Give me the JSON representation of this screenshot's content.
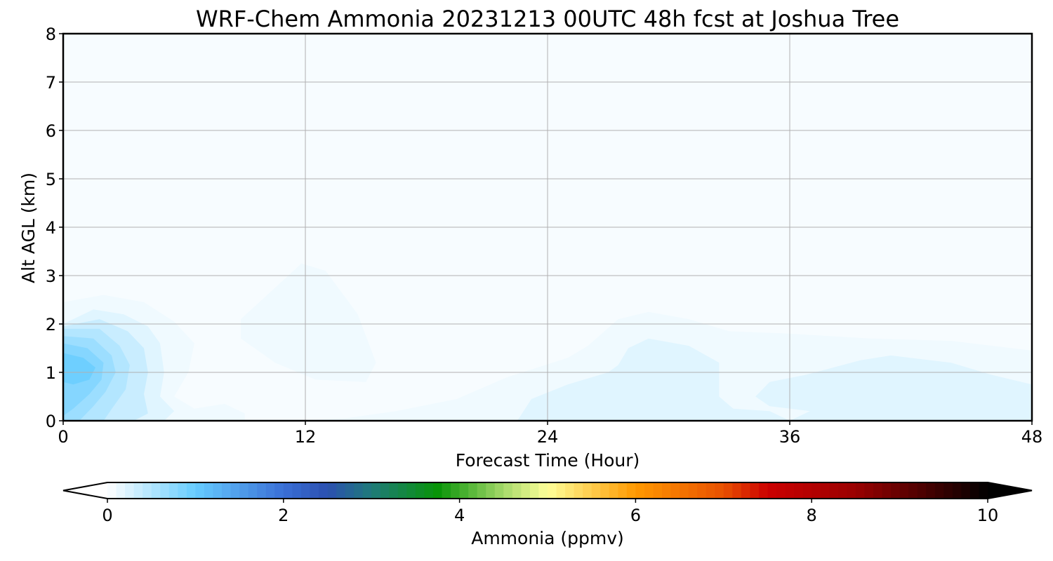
{
  "chart_data": {
    "type": "heatmap",
    "title": "WRF-Chem Ammonia  20231213 00UTC 48h fcst at Joshua Tree",
    "xlabel": "Forecast Time (Hour)",
    "ylabel": "Alt AGL (km)",
    "xlim": [
      0,
      48
    ],
    "ylim": [
      0,
      8
    ],
    "xticks": [
      "0",
      "12",
      "24",
      "36",
      "48"
    ],
    "yticks": [
      "0",
      "1",
      "2",
      "3",
      "4",
      "5",
      "6",
      "7",
      "8"
    ],
    "grid": true,
    "colorbar": {
      "label": "Ammonia  (ppmv)",
      "range": [
        0,
        10
      ],
      "ticks": [
        "0",
        "2",
        "4",
        "6",
        "8",
        "10"
      ],
      "extend": "both",
      "levels": 100,
      "stops": [
        {
          "value": 0,
          "color": "#ffffff"
        },
        {
          "value": 1,
          "color": "#66ccff"
        },
        {
          "value": 2,
          "color": "#3a6fd6"
        },
        {
          "value": 2.5,
          "color": "#2b50b0"
        },
        {
          "value": 3,
          "color": "#1f7a7a"
        },
        {
          "value": 3.75,
          "color": "#089408"
        },
        {
          "value": 4.5,
          "color": "#a6d96a"
        },
        {
          "value": 5,
          "color": "#ffff99"
        },
        {
          "value": 6,
          "color": "#ff9900"
        },
        {
          "value": 7,
          "color": "#e85000"
        },
        {
          "value": 7.5,
          "color": "#cc0000"
        },
        {
          "value": 8.5,
          "color": "#990000"
        },
        {
          "value": 10,
          "color": "#000000"
        }
      ]
    },
    "background_value": 0.05,
    "regions": [
      {
        "level": 0.1,
        "points": [
          [
            0,
            2.45
          ],
          [
            2,
            2.6
          ],
          [
            4,
            2.45
          ],
          [
            5.5,
            2.05
          ],
          [
            6.5,
            1.6
          ],
          [
            6.2,
            1.0
          ],
          [
            5.5,
            0.5
          ],
          [
            6.5,
            0.25
          ],
          [
            8,
            0.35
          ],
          [
            9,
            0.15
          ],
          [
            9,
            0
          ],
          [
            0,
            0
          ]
        ]
      },
      {
        "level": 0.1,
        "points": [
          [
            8.8,
            2.1
          ],
          [
            10.5,
            2.75
          ],
          [
            11.8,
            3.25
          ],
          [
            13,
            3.1
          ],
          [
            14.6,
            2.2
          ],
          [
            15.5,
            1.2
          ],
          [
            15,
            0.8
          ],
          [
            12.5,
            0.85
          ],
          [
            10.5,
            1.2
          ],
          [
            8.8,
            1.7
          ]
        ]
      },
      {
        "level": 0.1,
        "points": [
          [
            11.5,
            0
          ],
          [
            14,
            0.05
          ],
          [
            16.5,
            0.2
          ],
          [
            19.5,
            0.45
          ],
          [
            22,
            0.9
          ],
          [
            25,
            1.3
          ],
          [
            26,
            1.55
          ],
          [
            27.5,
            2.1
          ],
          [
            29,
            2.25
          ],
          [
            31,
            2.1
          ],
          [
            33,
            1.85
          ],
          [
            36,
            1.8
          ],
          [
            40,
            1.7
          ],
          [
            44,
            1.65
          ],
          [
            48,
            1.45
          ],
          [
            48,
            0
          ]
        ]
      },
      {
        "level": 0.2,
        "points": [
          [
            22.5,
            0
          ],
          [
            23.2,
            0.45
          ],
          [
            25,
            0.75
          ],
          [
            27,
            1.0
          ],
          [
            27.5,
            1.15
          ],
          [
            28,
            1.5
          ],
          [
            29,
            1.7
          ],
          [
            31,
            1.55
          ],
          [
            32.5,
            1.2
          ],
          [
            32.5,
            0.5
          ],
          [
            33.2,
            0.25
          ],
          [
            35,
            0.2
          ],
          [
            36,
            0
          ],
          [
            34,
            0
          ]
        ]
      },
      {
        "level": 0.2,
        "points": [
          [
            34.3,
            0.5
          ],
          [
            35,
            0.8
          ],
          [
            36.8,
            0.95
          ],
          [
            39.5,
            1.25
          ],
          [
            41,
            1.35
          ],
          [
            44,
            1.2
          ],
          [
            46,
            0.95
          ],
          [
            48,
            0.75
          ],
          [
            48,
            0
          ],
          [
            36,
            0
          ],
          [
            37,
            0.2
          ],
          [
            35,
            0.3
          ]
        ]
      },
      {
        "level": 0.2,
        "points": [
          [
            0,
            2.0
          ],
          [
            1.5,
            2.3
          ],
          [
            3,
            2.2
          ],
          [
            4.2,
            1.95
          ],
          [
            4.8,
            1.6
          ],
          [
            5,
            1.0
          ],
          [
            4.8,
            0.5
          ],
          [
            5.5,
            0.2
          ],
          [
            5,
            0
          ],
          [
            0,
            0
          ]
        ]
      },
      {
        "level": 0.35,
        "points": [
          [
            0,
            1.95
          ],
          [
            1.8,
            2.1
          ],
          [
            3.2,
            1.85
          ],
          [
            4,
            1.5
          ],
          [
            4.2,
            1.0
          ],
          [
            4,
            0.55
          ],
          [
            4.2,
            0.15
          ],
          [
            3.5,
            0
          ],
          [
            0,
            0
          ]
        ]
      },
      {
        "level": 0.5,
        "points": [
          [
            0,
            1.9
          ],
          [
            1.8,
            1.9
          ],
          [
            2.8,
            1.55
          ],
          [
            3.3,
            1.15
          ],
          [
            3.1,
            0.65
          ],
          [
            2.5,
            0.3
          ],
          [
            2,
            0
          ],
          [
            0,
            0
          ]
        ]
      },
      {
        "level": 0.65,
        "points": [
          [
            0,
            1.75
          ],
          [
            1.5,
            1.7
          ],
          [
            2.4,
            1.35
          ],
          [
            2.6,
            1.0
          ],
          [
            2.1,
            0.6
          ],
          [
            1.5,
            0.3
          ],
          [
            0.8,
            0
          ],
          [
            0,
            0
          ]
        ]
      },
      {
        "level": 0.8,
        "points": [
          [
            0,
            1.6
          ],
          [
            1.2,
            1.5
          ],
          [
            2.0,
            1.2
          ],
          [
            1.9,
            0.85
          ],
          [
            1.3,
            0.55
          ],
          [
            0.5,
            0.25
          ],
          [
            0,
            0.1
          ]
        ]
      },
      {
        "level": 0.95,
        "points": [
          [
            0,
            1.4
          ],
          [
            1.0,
            1.3
          ],
          [
            1.6,
            1.1
          ],
          [
            1.3,
            0.85
          ],
          [
            0.5,
            0.75
          ],
          [
            0,
            0.8
          ]
        ]
      }
    ]
  }
}
